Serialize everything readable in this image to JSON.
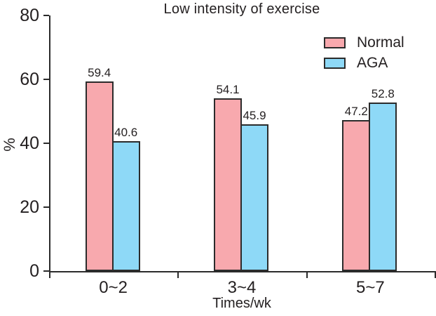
{
  "chart_data": {
    "type": "bar",
    "title": "Low intensity of exercise",
    "xlabel": "Times/wk",
    "ylabel": "%",
    "categories": [
      "0~2",
      "3~4",
      "5~7"
    ],
    "series": [
      {
        "name": "Normal",
        "color": "#f8a9ae",
        "values": [
          59.4,
          54.1,
          47.2
        ]
      },
      {
        "name": "AGA",
        "color": "#8ed9f7",
        "values": [
          40.6,
          45.9,
          52.8
        ]
      }
    ],
    "ylim": [
      0,
      80
    ],
    "yticks": [
      0,
      20,
      40,
      60,
      80
    ],
    "grid": false,
    "legend_position": "upper right",
    "colors": {
      "axis": "#2b2b2b",
      "text": "#231f20",
      "background": "#ffffff"
    }
  }
}
